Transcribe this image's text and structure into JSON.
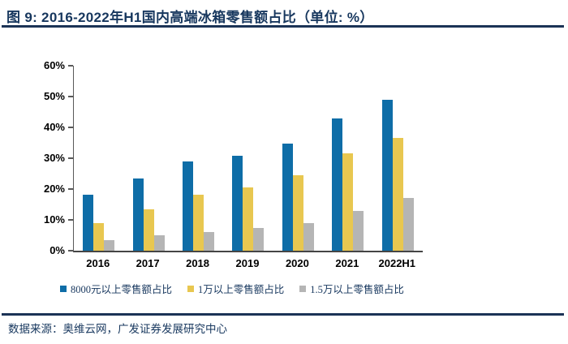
{
  "header": {
    "title": "图 9:  2016-2022年H1国内高端冰箱零售额占比（单位: %）"
  },
  "footer": {
    "source": "数据来源：奥维云网，广发证券发展研究中心"
  },
  "colors": {
    "title_navy": "#17375E",
    "rule_navy": "#1B3356",
    "axis_gray": "#595959",
    "tick_label_black": "#000000",
    "series_blue": "#0E6DA7",
    "series_yellow": "#E8C750",
    "series_gray": "#B5B5B5"
  },
  "chart_data": {
    "type": "bar",
    "title": "2016-2022年H1国内高端冰箱零售额占比",
    "unit": "%",
    "categories": [
      "2016",
      "2017",
      "2018",
      "2019",
      "2020",
      "2021",
      "2022H1"
    ],
    "series": [
      {
        "name": "8000元以上零售额占比",
        "color": "#0E6DA7",
        "values": [
          18.1,
          23.3,
          28.9,
          30.9,
          34.8,
          43.0,
          48.9
        ]
      },
      {
        "name": "1万以上零售额占比",
        "color": "#E8C750",
        "values": [
          9.0,
          13.5,
          18.1,
          20.5,
          24.5,
          31.6,
          36.5
        ]
      },
      {
        "name": "1.5万以上零售额占比",
        "color": "#B5B5B5",
        "values": [
          3.5,
          5.0,
          6.0,
          7.3,
          9.0,
          13.0,
          17.0
        ]
      }
    ],
    "ylim": [
      0,
      60
    ],
    "yticks": [
      "0%",
      "10%",
      "20%",
      "30%",
      "40%",
      "50%",
      "60%"
    ],
    "grid": false,
    "legend_position": "bottom"
  }
}
